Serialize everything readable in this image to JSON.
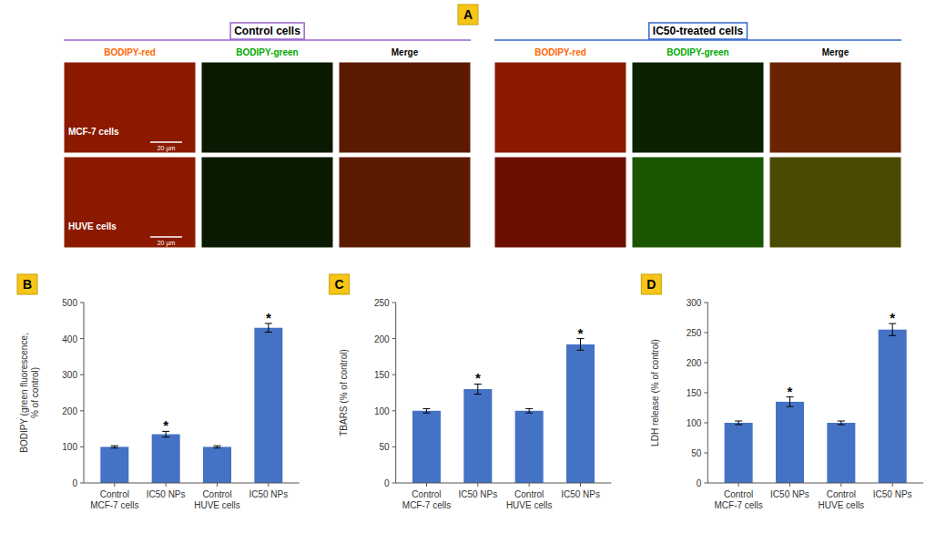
{
  "chart_data": [
    {
      "type": "image",
      "title": "A",
      "annotations": {
        "groups": [
          {
            "text": "Control cells",
            "color": "#9966cc"
          },
          {
            "text": "IC50-treated cells",
            "color": "#3366cc"
          }
        ],
        "columns": [
          {
            "text": "BODIPY-red",
            "color": "#ff6600"
          },
          {
            "text": "BODIPY-green",
            "color": "#00aa00"
          },
          {
            "text": "Merge",
            "color": "#000000"
          },
          {
            "text": "BODIPY-red",
            "color": "#ff6600"
          },
          {
            "text": "BODIPY-green",
            "color": "#00aa00"
          },
          {
            "text": "Merge",
            "color": "#000000"
          }
        ],
        "rows": [
          "MCF-7 cells",
          "HUVE cells"
        ],
        "scale_bar": "20 µm"
      }
    },
    {
      "type": "bar",
      "title": "B",
      "categories": [
        "Control\nMCF-7 cells",
        "IC50 NPs",
        "Control\nHUVE cells",
        "IC50 NPs"
      ],
      "values": [
        100,
        135,
        100,
        430
      ],
      "errors": [
        3,
        8,
        3,
        12
      ],
      "annotations": [
        null,
        "*",
        null,
        "*"
      ],
      "ylabel": "BODIPY (green fluorescence,\n% of control)",
      "ylim": [
        0,
        500
      ],
      "yticks": [
        0,
        100,
        200,
        300,
        400,
        500
      ],
      "color": "#4472C4",
      "grid": false
    },
    {
      "type": "bar",
      "title": "C",
      "categories": [
        "Control\nMCF-7 cells",
        "IC50 NPs",
        "Control\nHUVE cells",
        "IC50 NPs"
      ],
      "values": [
        100,
        130,
        100,
        192
      ],
      "errors": [
        3,
        7,
        3,
        8
      ],
      "annotations": [
        null,
        "*",
        null,
        "*"
      ],
      "ylabel": "TBARS (% of control)",
      "ylim": [
        0,
        250
      ],
      "yticks": [
        0,
        50,
        100,
        150,
        200,
        250
      ],
      "color": "#4472C4",
      "grid": false
    },
    {
      "type": "bar",
      "title": "D",
      "categories": [
        "Control\nMCF-7 cells",
        "IC50 NPs",
        "Control\nHUVE cells",
        "IC50 NPs"
      ],
      "values": [
        100,
        135,
        100,
        255
      ],
      "errors": [
        3,
        8,
        3,
        10
      ],
      "annotations": [
        null,
        "*",
        null,
        "*"
      ],
      "ylabel": "LDH release (% of control)",
      "ylim": [
        0,
        300
      ],
      "yticks": [
        0,
        50,
        100,
        150,
        200,
        250,
        300
      ],
      "color": "#4472C4",
      "grid": false
    }
  ]
}
